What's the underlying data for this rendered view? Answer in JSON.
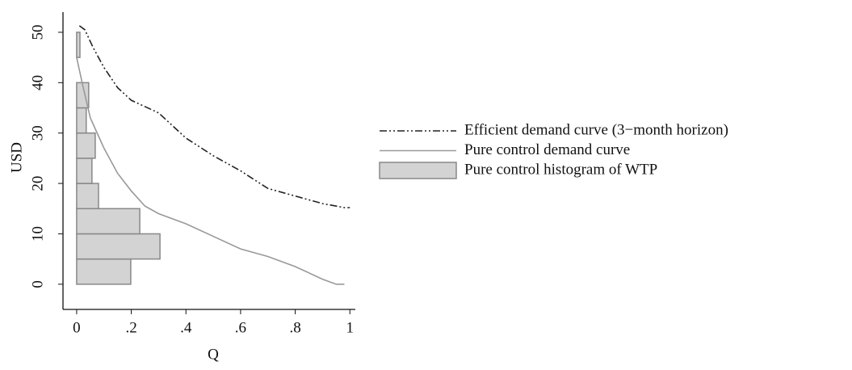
{
  "chart_data": {
    "type": "line",
    "xlabel": "Q",
    "ylabel": "USD",
    "xlim": [
      -0.05,
      1.02
    ],
    "ylim": [
      -5,
      54
    ],
    "xticks": [
      0,
      {
        "value": 0.2,
        "label": ".2"
      },
      {
        "value": 0.4,
        "label": ".4"
      },
      {
        "value": 0.6,
        "label": ".6"
      },
      {
        "value": 0.8,
        "label": ".8"
      },
      1
    ],
    "yticks": [
      0,
      10,
      20,
      30,
      40,
      50
    ],
    "legend": "right",
    "series": [
      {
        "name": "Efficient demand curve (3−month horizon)",
        "type": "line",
        "style": "dash-dot",
        "color": "#222222",
        "x": [
          0.01,
          0.03,
          0.06,
          0.1,
          0.15,
          0.2,
          0.3,
          0.4,
          0.5,
          0.6,
          0.7,
          0.8,
          0.9,
          0.98,
          1
        ],
        "values": [
          51.3,
          50.5,
          47,
          43,
          39,
          36.5,
          34,
          29,
          25.5,
          22.5,
          19,
          17.5,
          16,
          15.2,
          15.2
        ]
      },
      {
        "name": "Pure control demand curve",
        "type": "line",
        "style": "solid",
        "color": "#999999",
        "x": [
          0,
          0.02,
          0.05,
          0.1,
          0.15,
          0.2,
          0.25,
          0.3,
          0.4,
          0.5,
          0.6,
          0.7,
          0.8,
          0.9,
          0.95,
          0.98
        ],
        "values": [
          45,
          40,
          33,
          27,
          22,
          18.5,
          15.5,
          14,
          12,
          9.5,
          7,
          5.5,
          3.5,
          1,
          0,
          0
        ]
      },
      {
        "name": "Pure control histogram of WTP",
        "type": "histogram",
        "color": "#d3d3d3",
        "edge": "#888888",
        "bins": [
          0,
          5,
          10,
          15,
          20,
          25,
          30,
          35,
          40,
          45,
          50
        ],
        "values": [
          0.198,
          0.305,
          0.231,
          0.08,
          0.056,
          0.068,
          0.035,
          0.044,
          0,
          0.012
        ]
      }
    ]
  }
}
